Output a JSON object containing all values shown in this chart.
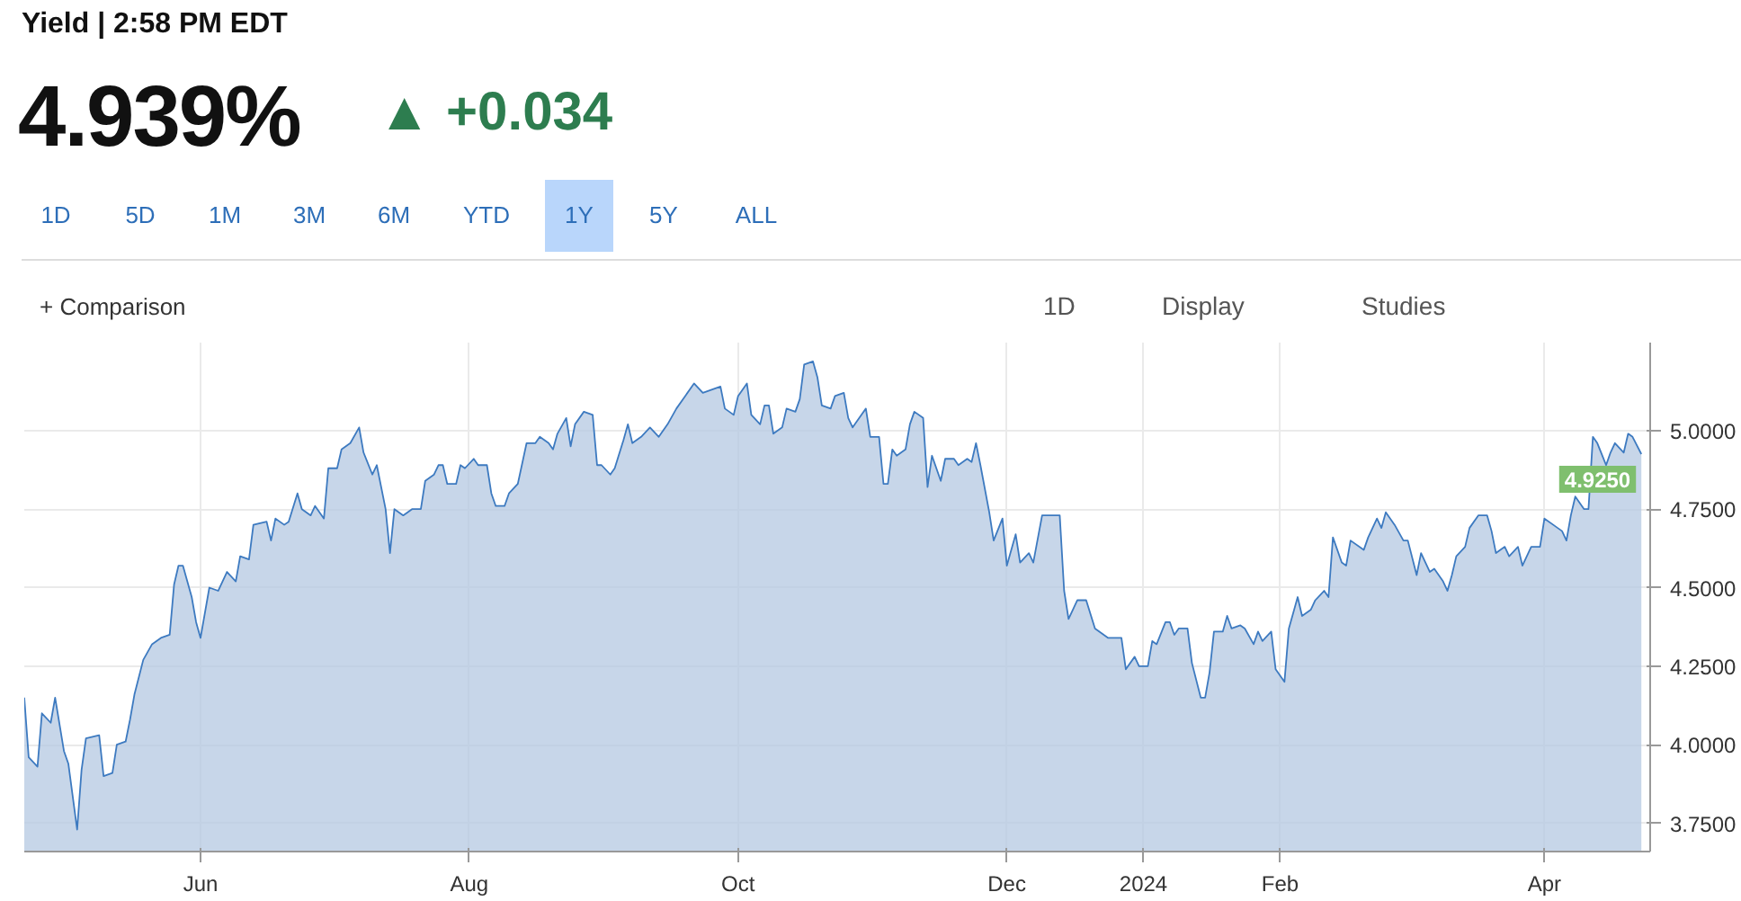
{
  "chart_data": {
    "type": "area",
    "title": "Yield | 2:58 PM EDT",
    "annotations": [
      "4.939%",
      "▲ +0.034",
      "1D",
      "5D",
      "1M",
      "3M",
      "6M",
      "YTD",
      "1Y",
      "5Y",
      "ALL",
      "+ Comparison",
      "1D",
      "Display",
      "Studies",
      {
        "text": "4.9250",
        "x": "2024-04-23",
        "y": 4.925
      }
    ],
    "series": [
      {
        "color": "#3d7ac0",
        "x": [
          "2023-04-22",
          "2023-04-23",
          "2023-04-25",
          "2023-04-26",
          "2023-04-28",
          "2023-04-29",
          "2023-05-01",
          "2023-05-02",
          "2023-05-04",
          "2023-05-05",
          "2023-05-06",
          "2023-05-09",
          "2023-05-10",
          "2023-05-12",
          "2023-05-13",
          "2023-05-15",
          "2023-05-16",
          "2023-05-17",
          "2023-05-19",
          "2023-05-21",
          "2023-05-23",
          "2023-05-25",
          "2023-05-26",
          "2023-05-27",
          "2023-05-28",
          "2023-05-30",
          "2023-05-31",
          "2023-06-01",
          "2023-06-03",
          "2023-06-05",
          "2023-06-07",
          "2023-06-09",
          "2023-06-10",
          "2023-06-12",
          "2023-06-13",
          "2023-06-16",
          "2023-06-17",
          "2023-06-18",
          "2023-06-20",
          "2023-06-21",
          "2023-06-23",
          "2023-06-24",
          "2023-06-26",
          "2023-06-27",
          "2023-06-29",
          "2023-06-30",
          "2023-07-02",
          "2023-07-03",
          "2023-07-05",
          "2023-07-07",
          "2023-07-08",
          "2023-07-10",
          "2023-07-11",
          "2023-07-13",
          "2023-07-14",
          "2023-07-15",
          "2023-07-17",
          "2023-07-19",
          "2023-07-21",
          "2023-07-22",
          "2023-07-24",
          "2023-07-25",
          "2023-07-26",
          "2023-07-27",
          "2023-07-29",
          "2023-07-30",
          "2023-07-31",
          "2023-08-02",
          "2023-08-03",
          "2023-08-05",
          "2023-08-06",
          "2023-08-07",
          "2023-08-09",
          "2023-08-10",
          "2023-08-12",
          "2023-08-14",
          "2023-08-16",
          "2023-08-17",
          "2023-08-19",
          "2023-08-20",
          "2023-08-21",
          "2023-08-23",
          "2023-08-24",
          "2023-08-25",
          "2023-08-27",
          "2023-08-29",
          "2023-08-30",
          "2023-08-31",
          "2023-09-02",
          "2023-09-03",
          "2023-09-05",
          "2023-09-06",
          "2023-09-07",
          "2023-09-09",
          "2023-09-11",
          "2023-09-13",
          "2023-09-15",
          "2023-09-17",
          "2023-09-19",
          "2023-09-21",
          "2023-09-23",
          "2023-09-27",
          "2023-09-28",
          "2023-09-30",
          "2023-10-01",
          "2023-10-03",
          "2023-10-04",
          "2023-10-06",
          "2023-10-07",
          "2023-10-08",
          "2023-10-09",
          "2023-10-11",
          "2023-10-12",
          "2023-10-14",
          "2023-10-15",
          "2023-10-16",
          "2023-10-18",
          "2023-10-19",
          "2023-10-20",
          "2023-10-22",
          "2023-10-23",
          "2023-10-25",
          "2023-10-26",
          "2023-10-27",
          "2023-10-29",
          "2023-10-30",
          "2023-10-31",
          "2023-11-02",
          "2023-11-03",
          "2023-11-04",
          "2023-11-05",
          "2023-11-06",
          "2023-11-08",
          "2023-11-09",
          "2023-11-10",
          "2023-11-12",
          "2023-11-13",
          "2023-11-14",
          "2023-11-16",
          "2023-11-17",
          "2023-11-19",
          "2023-11-20",
          "2023-11-22",
          "2023-11-23",
          "2023-11-24",
          "2023-11-25",
          "2023-11-27",
          "2023-11-28",
          "2023-11-30",
          "2023-12-01",
          "2023-12-03",
          "2023-12-04",
          "2023-12-06",
          "2023-12-07",
          "2023-12-09",
          "2023-12-13",
          "2023-12-14",
          "2023-12-15",
          "2023-12-17",
          "2023-12-19",
          "2023-12-21",
          "2023-12-24",
          "2023-12-27",
          "2023-12-28",
          "2023-12-30",
          "2023-12-31",
          "2024-01-02",
          "2024-01-03",
          "2024-01-04",
          "2024-01-06",
          "2024-01-07",
          "2024-01-08",
          "2024-01-09",
          "2024-01-11",
          "2024-01-12",
          "2024-01-14",
          "2024-01-15",
          "2024-01-16",
          "2024-01-17",
          "2024-01-19",
          "2024-01-20",
          "2024-01-21",
          "2024-01-23",
          "2024-01-24",
          "2024-01-26",
          "2024-01-27",
          "2024-01-28",
          "2024-01-30",
          "2024-01-31",
          "2024-02-02",
          "2024-02-03",
          "2024-02-05",
          "2024-02-06",
          "2024-02-08",
          "2024-02-09",
          "2024-02-11",
          "2024-02-12",
          "2024-02-13",
          "2024-02-15",
          "2024-02-16",
          "2024-02-17",
          "2024-02-20",
          "2024-02-21",
          "2024-02-23",
          "2024-02-24",
          "2024-02-25",
          "2024-02-27",
          "2024-02-29",
          "2024-03-01",
          "2024-03-03",
          "2024-03-04",
          "2024-03-06",
          "2024-03-07",
          "2024-03-09",
          "2024-03-10",
          "2024-03-11",
          "2024-03-12",
          "2024-03-14",
          "2024-03-15",
          "2024-03-17",
          "2024-03-19",
          "2024-03-20",
          "2024-03-21",
          "2024-03-23",
          "2024-03-24",
          "2024-03-26",
          "2024-03-27",
          "2024-03-29",
          "2024-03-31",
          "2024-04-01",
          "2024-04-03",
          "2024-04-05",
          "2024-04-06",
          "2024-04-07",
          "2024-04-08",
          "2024-04-10",
          "2024-04-11",
          "2024-04-12",
          "2024-04-13",
          "2024-04-15",
          "2024-04-16",
          "2024-04-17",
          "2024-04-19",
          "2024-04-20",
          "2024-04-21",
          "2024-04-23"
        ],
        "values": [
          4.15,
          3.96,
          3.93,
          4.1,
          4.07,
          4.15,
          3.98,
          3.94,
          3.73,
          3.92,
          4.02,
          4.03,
          3.9,
          3.91,
          4.0,
          4.01,
          4.08,
          4.16,
          4.27,
          4.32,
          4.34,
          4.35,
          4.51,
          4.57,
          4.57,
          4.47,
          4.39,
          4.34,
          4.5,
          4.49,
          4.55,
          4.52,
          4.6,
          4.59,
          4.7,
          4.71,
          4.65,
          4.72,
          4.7,
          4.71,
          4.8,
          4.75,
          4.73,
          4.76,
          4.72,
          4.88,
          4.88,
          4.94,
          4.96,
          5.01,
          4.93,
          4.86,
          4.89,
          4.75,
          4.61,
          4.75,
          4.73,
          4.75,
          4.75,
          4.84,
          4.86,
          4.89,
          4.89,
          4.83,
          4.83,
          4.89,
          4.88,
          4.91,
          4.89,
          4.89,
          4.8,
          4.76,
          4.76,
          4.8,
          4.83,
          4.96,
          4.96,
          4.98,
          4.96,
          4.94,
          4.99,
          5.04,
          4.95,
          5.02,
          5.06,
          5.05,
          4.89,
          4.89,
          4.86,
          4.88,
          4.97,
          5.02,
          4.96,
          4.98,
          5.01,
          4.98,
          5.02,
          5.07,
          5.11,
          5.15,
          5.12,
          5.14,
          5.07,
          5.05,
          5.11,
          5.15,
          5.05,
          5.02,
          5.08,
          5.08,
          4.99,
          5.01,
          5.07,
          5.06,
          5.1,
          5.21,
          5.22,
          5.17,
          5.08,
          5.07,
          5.11,
          5.12,
          5.04,
          5.01,
          5.05,
          5.07,
          4.98,
          4.98,
          4.83,
          4.83,
          4.94,
          4.92,
          4.94,
          5.02,
          5.06,
          5.04,
          4.82,
          4.92,
          4.84,
          4.91,
          4.91,
          4.89,
          4.91,
          4.9,
          4.96,
          4.89,
          4.74,
          4.65,
          4.72,
          4.57,
          4.67,
          4.58,
          4.61,
          4.58,
          4.73,
          4.73,
          4.49,
          4.4,
          4.46,
          4.46,
          4.37,
          4.34,
          4.34,
          4.24,
          4.28,
          4.25,
          4.25,
          4.33,
          4.32,
          4.39,
          4.39,
          4.35,
          4.37,
          4.37,
          4.26,
          4.15,
          4.15,
          4.23,
          4.36,
          4.36,
          4.41,
          4.37,
          4.38,
          4.37,
          4.32,
          4.36,
          4.33,
          4.36,
          4.24,
          4.2,
          4.37,
          4.47,
          4.41,
          4.43,
          4.46,
          4.49,
          4.47,
          4.66,
          4.58,
          4.57,
          4.65,
          4.62,
          4.66,
          4.72,
          4.69,
          4.74,
          4.7,
          4.65,
          4.65,
          4.54,
          4.61,
          4.55,
          4.56,
          4.52,
          4.49,
          4.54,
          4.6,
          4.63,
          4.69,
          4.73,
          4.73,
          4.68,
          4.61,
          4.63,
          4.6,
          4.63,
          4.57,
          4.63,
          4.63,
          4.72,
          4.7,
          4.68,
          4.65,
          4.73,
          4.79,
          4.75,
          4.75,
          4.98,
          4.96,
          4.89,
          4.93,
          4.96,
          4.93,
          4.99,
          4.98,
          4.925
        ]
      }
    ],
    "xlim": [
      "2023-04-22",
      "2024-04-25"
    ],
    "xticks": [
      {
        "value": "2023-06-01",
        "label": "Jun"
      },
      {
        "value": "2023-08-01",
        "label": "Aug"
      },
      {
        "value": "2023-10-01",
        "label": "Oct"
      },
      {
        "value": "2023-12-01",
        "label": "Dec"
      },
      {
        "value": "2024-01-01",
        "label": "2024"
      },
      {
        "value": "2024-02-01",
        "label": "Feb"
      },
      {
        "value": "2024-04-01",
        "label": "Apr"
      }
    ],
    "ylim": [
      3.66,
      5.28
    ],
    "yticks": [
      {
        "value": 3.75,
        "label": "3.7500"
      },
      {
        "value": 4.0,
        "label": "4.0000"
      },
      {
        "value": 4.25,
        "label": "4.2500"
      },
      {
        "value": 4.5,
        "label": "4.5000"
      },
      {
        "value": 4.75,
        "label": "4.7500"
      },
      {
        "value": 5.0,
        "label": "5.0000"
      }
    ],
    "grid": true
  }
}
